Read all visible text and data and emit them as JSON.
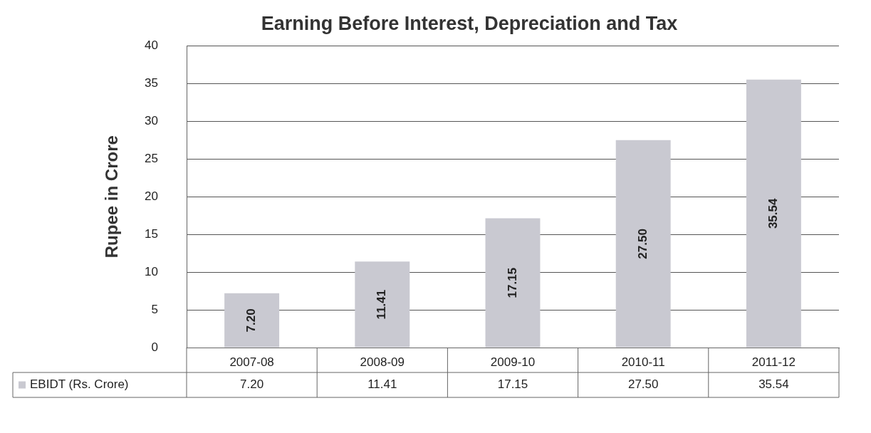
{
  "chart_data": {
    "type": "bar",
    "title": "Earning Before Interest, Depreciation and Tax",
    "ylabel": "Rupee in Crore",
    "categories": [
      "2007-08",
      "2008-09",
      "2009-10",
      "2010-11",
      "2011-12"
    ],
    "series": [
      {
        "name": "EBIDT (Rs. Crore)",
        "color": "#c9c9d1",
        "values": [
          7.2,
          11.41,
          17.15,
          27.5,
          35.54
        ],
        "value_labels": [
          "7.20",
          "11.41",
          "17.15",
          "27.50",
          "35.54"
        ]
      }
    ],
    "ylim": [
      0,
      40
    ],
    "yticks": [
      0,
      5,
      10,
      15,
      20,
      25,
      30,
      35,
      40
    ],
    "grid": "y",
    "legend": "bottom"
  }
}
